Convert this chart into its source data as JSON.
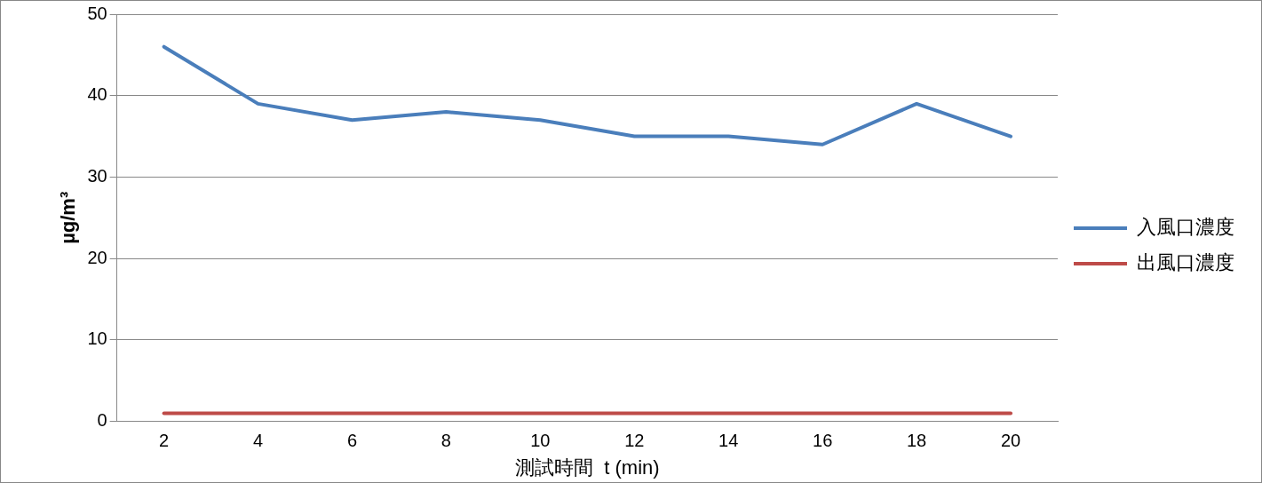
{
  "chart_data": {
    "type": "line",
    "xlabel": "測試時間  t (min)",
    "ylabel": "µg/m³",
    "categories": [
      "2",
      "4",
      "6",
      "8",
      "10",
      "12",
      "14",
      "16",
      "18",
      "20"
    ],
    "series": [
      {
        "name": "入風口濃度",
        "color": "#4a7ebb",
        "values": [
          46,
          39,
          37,
          38,
          37,
          35,
          35,
          34,
          39,
          35
        ]
      },
      {
        "name": "出風口濃度",
        "color": "#be4b48",
        "values": [
          1,
          1,
          1,
          1,
          1,
          1,
          1,
          1,
          1,
          1
        ]
      }
    ],
    "ylim": [
      0,
      50
    ],
    "yticks": [
      0,
      10,
      20,
      30,
      40,
      50
    ],
    "grid": "y",
    "legend": "right",
    "marker": "none",
    "line_style": "solid"
  }
}
